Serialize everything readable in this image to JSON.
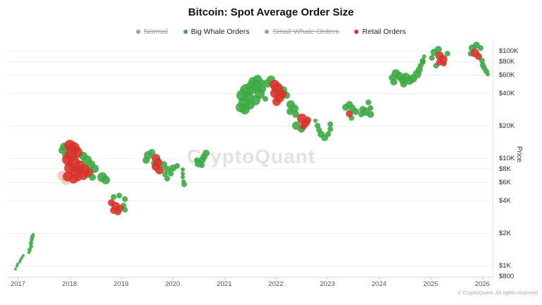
{
  "title": "Bitcoin: Spot Average Order Size",
  "watermark": "CryptoQuant",
  "footer": "© CryptoQuant. All rights reserved",
  "legend": [
    {
      "label": "Normal",
      "color": "#9e9e9e",
      "disabled": true
    },
    {
      "label": "Big Whale Orders",
      "color": "#3cab43",
      "disabled": false
    },
    {
      "label": "Small Whale Orders",
      "color": "#9e9e9e",
      "disabled": true
    },
    {
      "label": "Retail Orders",
      "color": "#d7342b",
      "disabled": false
    }
  ],
  "chart_data": {
    "type": "scatter",
    "title": "Bitcoin: Spot Average Order Size",
    "xlabel": "",
    "ylabel": "Price",
    "grid": "horizontal",
    "legend_position": "top",
    "x_axis": {
      "range": [
        2016.79,
        2026.2
      ],
      "ticks": [
        2017,
        2018,
        2019,
        2020,
        2021,
        2022,
        2023,
        2024,
        2025,
        2026
      ]
    },
    "y_axis": {
      "scale": "log",
      "unit": "USD",
      "range": [
        785,
        127000
      ],
      "ticks": [
        {
          "label": "$100K",
          "value": 100000
        },
        {
          "label": "$80K",
          "value": 80000
        },
        {
          "label": "$60K",
          "value": 60000
        },
        {
          "label": "$40K",
          "value": 40000
        },
        {
          "label": "$20K",
          "value": 20000
        },
        {
          "label": "$10K",
          "value": 10000
        },
        {
          "label": "$8K",
          "value": 8000
        },
        {
          "label": "$6K",
          "value": 6000
        },
        {
          "label": "$4K",
          "value": 4000
        },
        {
          "label": "$2K",
          "value": 2000
        },
        {
          "label": "$1K",
          "value": 1000
        },
        {
          "label": "$800",
          "value": 800
        }
      ]
    },
    "series_colors": {
      "big_whale_orders": "#3cab43",
      "retail_orders": "#d7342b",
      "retail_orders_faded": "#e59a93"
    },
    "point_format": [
      "year_decimal",
      "price_usd",
      "radius_px",
      "color_index_0green_1red_2pink"
    ],
    "points": [
      [
        2016.95,
        930,
        2,
        0
      ],
      [
        2016.98,
        985,
        2,
        0
      ],
      [
        2017.0,
        1030,
        2,
        0
      ],
      [
        2017.03,
        1080,
        2,
        0
      ],
      [
        2017.05,
        1130,
        2,
        0
      ],
      [
        2017.08,
        1185,
        2,
        0
      ],
      [
        2017.11,
        1240,
        2,
        0
      ],
      [
        2017.21,
        1310,
        2,
        0
      ],
      [
        2017.23,
        1390,
        3,
        0
      ],
      [
        2017.25,
        1500,
        3,
        0
      ],
      [
        2017.26,
        1620,
        3,
        0
      ],
      [
        2017.27,
        1740,
        3,
        0
      ],
      [
        2017.28,
        1870,
        3,
        0
      ],
      [
        2017.29,
        1950,
        2,
        0
      ],
      [
        2017.9,
        12800,
        6,
        0
      ],
      [
        2017.85,
        11750,
        5,
        0
      ],
      [
        2017.93,
        10800,
        5,
        0
      ],
      [
        2018.26,
        10450,
        6,
        0
      ],
      [
        2018.34,
        9550,
        7,
        0
      ],
      [
        2018.42,
        8720,
        6,
        0
      ],
      [
        2018.49,
        7960,
        6,
        0
      ],
      [
        2018.35,
        7050,
        5,
        0
      ],
      [
        2018.45,
        6640,
        5,
        0
      ],
      [
        2018.63,
        6640,
        7,
        0
      ],
      [
        2018.7,
        6260,
        6,
        0
      ],
      [
        2017.86,
        6850,
        7,
        2
      ],
      [
        2017.92,
        6160,
        6,
        2
      ],
      [
        2018.0,
        13200,
        8,
        1
      ],
      [
        2018.08,
        12400,
        9,
        1
      ],
      [
        2018.15,
        11350,
        8,
        1
      ],
      [
        2018.04,
        10800,
        9,
        1
      ],
      [
        2017.96,
        9700,
        8,
        1
      ],
      [
        2018.08,
        9100,
        9,
        1
      ],
      [
        2018.18,
        8450,
        8,
        1
      ],
      [
        2018.0,
        8070,
        8,
        1
      ],
      [
        2018.11,
        7500,
        8,
        1
      ],
      [
        2018.2,
        7740,
        7,
        1
      ],
      [
        2018.29,
        7850,
        7,
        1
      ],
      [
        2017.97,
        6750,
        7,
        1
      ],
      [
        2018.07,
        6440,
        7,
        1
      ],
      [
        2018.16,
        6640,
        6,
        1
      ],
      [
        2018.26,
        6850,
        6,
        1
      ],
      [
        2018.37,
        7390,
        6,
        1
      ],
      [
        2018.85,
        4330,
        4,
        0
      ],
      [
        2018.96,
        4460,
        4,
        0
      ],
      [
        2019.07,
        4150,
        4,
        0
      ],
      [
        2019.04,
        3620,
        4,
        0
      ],
      [
        2019.08,
        3320,
        4,
        0
      ],
      [
        2018.82,
        3850,
        5,
        1
      ],
      [
        2018.89,
        3570,
        6,
        1
      ],
      [
        2018.85,
        3270,
        5,
        1
      ],
      [
        2018.93,
        3170,
        5,
        1
      ],
      [
        2018.98,
        3420,
        5,
        1
      ],
      [
        2019.52,
        10650,
        6,
        0
      ],
      [
        2019.59,
        11350,
        5,
        0
      ],
      [
        2019.48,
        9550,
        5,
        0
      ],
      [
        2019.65,
        9000,
        5,
        0
      ],
      [
        2019.83,
        8720,
        5,
        0
      ],
      [
        2019.89,
        7850,
        5,
        0
      ],
      [
        2019.85,
        7050,
        4,
        0
      ],
      [
        2019.89,
        6440,
        4,
        0
      ],
      [
        2019.96,
        7160,
        4,
        0
      ],
      [
        2020.01,
        8070,
        5,
        0
      ],
      [
        2020.08,
        8450,
        4,
        0
      ],
      [
        2020.19,
        7850,
        3,
        0
      ],
      [
        2020.2,
        7160,
        3,
        0
      ],
      [
        2020.2,
        6640,
        3,
        0
      ],
      [
        2020.21,
        6100,
        3,
        0
      ],
      [
        2020.22,
        5700,
        4,
        0
      ],
      [
        2019.67,
        10000,
        6,
        1
      ],
      [
        2019.72,
        9100,
        6,
        1
      ],
      [
        2019.67,
        8340,
        6,
        1
      ],
      [
        2019.74,
        7740,
        6,
        1
      ],
      [
        2020.47,
        9550,
        4,
        0
      ],
      [
        2020.5,
        8860,
        5,
        0
      ],
      [
        2020.56,
        9550,
        5,
        0
      ],
      [
        2020.61,
        10300,
        5,
        0
      ],
      [
        2020.64,
        11100,
        5,
        0
      ],
      [
        2020.56,
        8590,
        4,
        0
      ],
      [
        2021.34,
        38500,
        8,
        0
      ],
      [
        2021.43,
        42700,
        9,
        0
      ],
      [
        2021.53,
        45500,
        9,
        0
      ],
      [
        2021.62,
        47600,
        8,
        0
      ],
      [
        2021.47,
        36800,
        8,
        0
      ],
      [
        2021.38,
        33200,
        8,
        0
      ],
      [
        2021.31,
        29900,
        7,
        0
      ],
      [
        2021.4,
        28600,
        7,
        0
      ],
      [
        2021.5,
        31700,
        7,
        0
      ],
      [
        2021.6,
        34700,
        7,
        0
      ],
      [
        2021.69,
        39700,
        7,
        0
      ],
      [
        2021.73,
        44200,
        6,
        0
      ],
      [
        2021.56,
        51300,
        7,
        0
      ],
      [
        2021.64,
        54500,
        6,
        0
      ],
      [
        2021.71,
        50500,
        5,
        0
      ],
      [
        2021.79,
        35700,
        4,
        0
      ],
      [
        2021.84,
        49800,
        6,
        0
      ],
      [
        2021.91,
        53700,
        6,
        0
      ],
      [
        2022.14,
        42700,
        6,
        0
      ],
      [
        2022.2,
        38500,
        5,
        0
      ],
      [
        2021.97,
        48300,
        7,
        1
      ],
      [
        2022.03,
        44900,
        8,
        1
      ],
      [
        2021.99,
        40300,
        7,
        1
      ],
      [
        2022.07,
        36800,
        7,
        1
      ],
      [
        2022.02,
        33600,
        6,
        1
      ],
      [
        2022.12,
        39700,
        6,
        1
      ],
      [
        2022.29,
        31700,
        6,
        0
      ],
      [
        2022.35,
        28900,
        6,
        0
      ],
      [
        2022.28,
        27200,
        5,
        0
      ],
      [
        2022.39,
        25600,
        5,
        0
      ],
      [
        2022.4,
        20100,
        6,
        0
      ],
      [
        2022.49,
        18600,
        5,
        0
      ],
      [
        2022.51,
        23300,
        7,
        1
      ],
      [
        2022.58,
        21300,
        6,
        1
      ],
      [
        2022.54,
        19800,
        5,
        1
      ],
      [
        2022.62,
        22700,
        5,
        1
      ],
      [
        2022.77,
        22400,
        3,
        0
      ],
      [
        2022.81,
        20100,
        4,
        0
      ],
      [
        2022.84,
        18300,
        4,
        0
      ],
      [
        2022.88,
        16700,
        5,
        0
      ],
      [
        2022.94,
        15600,
        5,
        0
      ],
      [
        2023.01,
        16700,
        4,
        0
      ],
      [
        2023.05,
        18600,
        4,
        0
      ],
      [
        2023.06,
        20700,
        4,
        0
      ],
      [
        2023.35,
        29800,
        5,
        0
      ],
      [
        2023.42,
        31700,
        5,
        0
      ],
      [
        2023.48,
        29300,
        5,
        0
      ],
      [
        2023.54,
        27100,
        5,
        0
      ],
      [
        2023.46,
        23700,
        4,
        0
      ],
      [
        2023.42,
        26000,
        5,
        1
      ],
      [
        2023.79,
        33200,
        4,
        0
      ],
      [
        2023.68,
        28200,
        5,
        0
      ],
      [
        2023.74,
        27100,
        6,
        0
      ],
      [
        2023.83,
        25600,
        5,
        0
      ],
      [
        2023.65,
        25600,
        4,
        0
      ],
      [
        2023.83,
        29300,
        4,
        0
      ],
      [
        2024.26,
        56200,
        5,
        0
      ],
      [
        2024.32,
        61600,
        6,
        0
      ],
      [
        2024.39,
        58100,
        6,
        0
      ],
      [
        2024.46,
        53700,
        6,
        0
      ],
      [
        2024.52,
        57100,
        6,
        0
      ],
      [
        2024.59,
        52800,
        6,
        0
      ],
      [
        2024.66,
        55400,
        6,
        0
      ],
      [
        2024.73,
        60800,
        6,
        0
      ],
      [
        2024.78,
        66400,
        5,
        0
      ],
      [
        2024.81,
        72600,
        4,
        0
      ],
      [
        2024.84,
        78100,
        4,
        0
      ],
      [
        2024.29,
        51300,
        5,
        0
      ],
      [
        2024.47,
        49000,
        5,
        0
      ],
      [
        2024.85,
        81200,
        4,
        0
      ],
      [
        2024.87,
        88000,
        3,
        0
      ],
      [
        2025.06,
        97000,
        5,
        0
      ],
      [
        2025.14,
        103000,
        5,
        0
      ],
      [
        2025.32,
        94000,
        4,
        0
      ],
      [
        2025.02,
        85900,
        4,
        0
      ],
      [
        2025.11,
        72600,
        4,
        0
      ],
      [
        2025.17,
        89900,
        6,
        1
      ],
      [
        2025.24,
        83300,
        6,
        1
      ],
      [
        2025.17,
        78100,
        5,
        1
      ],
      [
        2025.25,
        75800,
        4,
        1
      ],
      [
        2025.8,
        106000,
        5,
        0
      ],
      [
        2025.88,
        112000,
        5,
        0
      ],
      [
        2025.96,
        106000,
        4,
        0
      ],
      [
        2025.77,
        94000,
        4,
        0
      ],
      [
        2026.0,
        81200,
        4,
        0
      ],
      [
        2026.01,
        74100,
        4,
        0
      ],
      [
        2026.04,
        68900,
        4,
        0
      ],
      [
        2026.08,
        63900,
        4,
        0
      ],
      [
        2026.11,
        60400,
        3,
        0
      ],
      [
        2025.86,
        95500,
        6,
        1
      ],
      [
        2025.92,
        88600,
        5,
        1
      ]
    ]
  }
}
